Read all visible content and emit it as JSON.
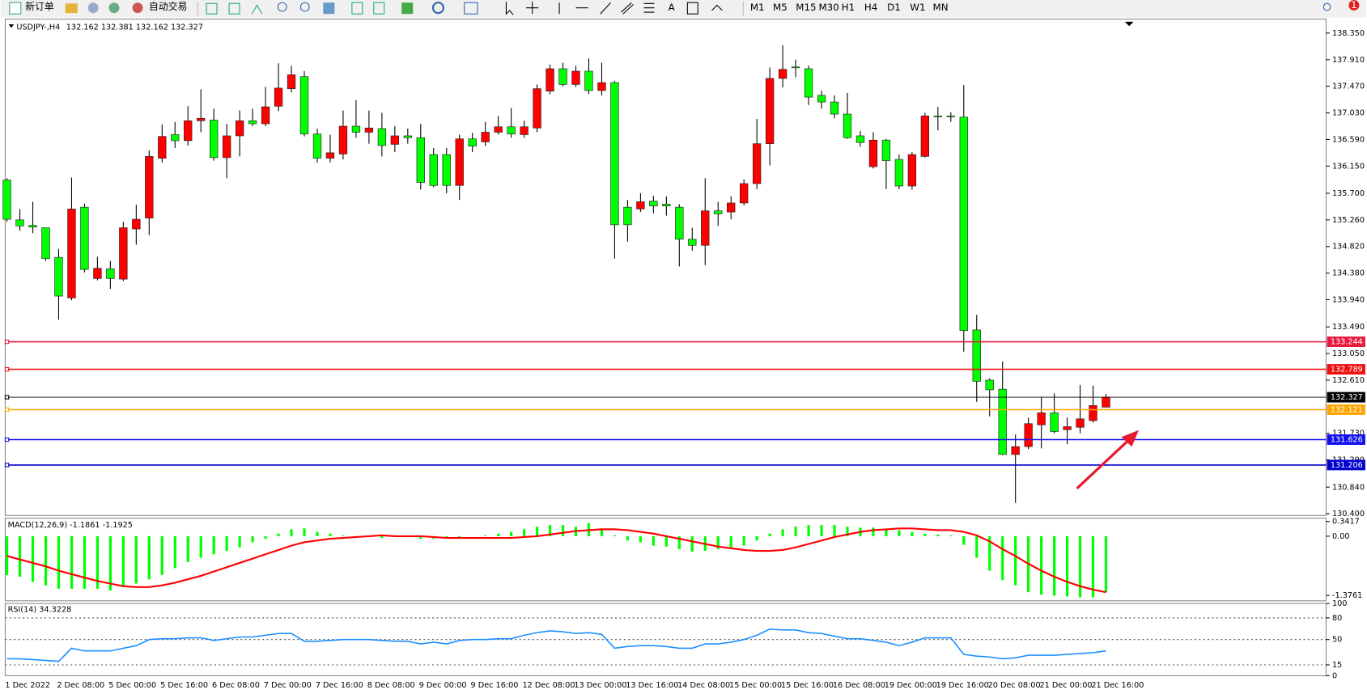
{
  "toolbar": {
    "buttons": [
      "新订单",
      "自动交易"
    ],
    "text_tool": "A",
    "timeframes": [
      "M1",
      "M5",
      "M15",
      "M30",
      "H1",
      "H4",
      "D1",
      "W1",
      "MN"
    ],
    "badge": "1"
  },
  "chart_data": [
    {
      "type": "candlestick",
      "title": "USDJPY-,H4",
      "subtitle": "132.162 132.381 132.162 132.327",
      "categories": [
        "1 Dec 2022",
        null,
        null,
        null,
        "2 Dec 08:00",
        null,
        null,
        null,
        "5 Dec 00:00",
        null,
        null,
        null,
        "5 Dec 16:00",
        null,
        null,
        null,
        "6 Dec 08:00",
        null,
        null,
        null,
        "7 Dec 00:00",
        null,
        null,
        null,
        "7 Dec 16:00",
        null,
        null,
        null,
        "8 Dec 08:00",
        null,
        null,
        null,
        "9 Dec 00:00",
        null,
        null,
        null,
        "9 Dec 16:00",
        null,
        null,
        null,
        "12 Dec 08:00",
        null,
        null,
        null,
        "13 Dec 00:00",
        null,
        null,
        null,
        "13 Dec 16:00",
        null,
        null,
        null,
        "14 Dec 08:00",
        null,
        null,
        null,
        "15 Dec 00:00",
        null,
        null,
        null,
        "15 Dec 16:00",
        null,
        null,
        null,
        "16 Dec 08:00",
        null,
        null,
        null,
        "19 Dec 00:00",
        null,
        null,
        null,
        "19 Dec 16:00",
        null,
        null,
        null,
        "20 Dec 08:00",
        null,
        null,
        null,
        "21 Dec 00:00",
        null,
        null,
        null,
        "21 Dec 16:00",
        null
      ],
      "open": [
        135.92,
        135.26,
        135.17,
        135.13,
        134.64,
        133.97,
        135.47,
        134.29,
        134.45,
        134.28,
        135.11,
        135.29,
        136.28,
        136.67,
        136.57,
        136.9,
        136.91,
        136.29,
        136.65,
        136.9,
        136.85,
        137.14,
        137.43,
        137.63,
        136.68,
        136.28,
        136.35,
        136.81,
        136.71,
        136.77,
        136.51,
        136.65,
        136.62,
        136.34,
        136.34,
        135.83,
        136.6,
        136.55,
        136.71,
        136.8,
        136.67,
        136.78,
        137.39,
        137.76,
        137.5,
        137.72,
        137.4,
        137.53,
        135.47,
        135.44,
        135.57,
        135.52,
        135.47,
        134.94,
        134.84,
        135.41,
        135.39,
        135.54,
        135.86,
        136.52,
        137.6,
        137.79,
        137.76,
        137.32,
        137.21,
        137.01,
        136.65,
        136.14,
        136.58,
        136.26,
        135.82,
        136.31,
        136.98,
        136.98,
        136.96,
        133.44,
        132.61,
        132.46,
        131.38,
        131.51,
        131.87,
        132.07,
        131.79,
        131.83,
        131.94,
        132.162
      ],
      "high": [
        135.95,
        135.44,
        135.56,
        135.13,
        134.78,
        135.96,
        135.53,
        134.65,
        134.58,
        135.23,
        135.51,
        136.41,
        136.84,
        136.88,
        137.14,
        137.42,
        137.1,
        136.85,
        137.07,
        137.1,
        137.46,
        137.85,
        137.81,
        137.72,
        136.77,
        136.67,
        137.07,
        137.24,
        137.07,
        137.03,
        136.81,
        136.77,
        136.85,
        136.45,
        136.45,
        136.67,
        136.7,
        136.88,
        136.98,
        137.11,
        136.9,
        137.5,
        137.83,
        137.86,
        137.81,
        137.93,
        137.86,
        137.56,
        135.59,
        135.7,
        135.66,
        135.65,
        135.52,
        135.13,
        135.95,
        135.56,
        135.65,
        135.93,
        136.93,
        137.78,
        138.15,
        137.91,
        137.81,
        137.4,
        137.32,
        137.36,
        136.73,
        136.71,
        136.6,
        136.34,
        136.38,
        137.03,
        137.13,
        137.04,
        137.49,
        133.69,
        132.64,
        132.92,
        131.71,
        131.99,
        132.32,
        132.39,
        131.99,
        132.53,
        132.52,
        132.381
      ],
      "low": [
        135.23,
        135.08,
        135.04,
        134.58,
        133.61,
        133.93,
        134.39,
        134.26,
        134.12,
        134.25,
        134.85,
        135.01,
        136.21,
        136.45,
        136.49,
        136.71,
        136.24,
        135.95,
        136.31,
        136.81,
        136.81,
        137.06,
        137.37,
        136.64,
        136.21,
        136.21,
        136.26,
        136.62,
        136.52,
        136.31,
        136.38,
        136.52,
        135.76,
        135.8,
        135.7,
        135.59,
        136.38,
        136.48,
        136.67,
        136.62,
        136.62,
        136.71,
        137.34,
        137.47,
        137.46,
        137.34,
        137.32,
        134.62,
        134.9,
        135.39,
        135.37,
        135.33,
        134.49,
        134.75,
        134.51,
        135.16,
        135.27,
        135.5,
        135.77,
        136.16,
        137.45,
        137.62,
        137.16,
        137.1,
        136.94,
        136.6,
        136.47,
        136.11,
        135.77,
        135.77,
        135.76,
        136.29,
        136.74,
        136.88,
        133.08,
        132.25,
        132.01,
        131.37,
        130.58,
        131.47,
        131.48,
        131.73,
        131.55,
        131.73,
        131.91,
        132.162
      ],
      "close": [
        135.27,
        135.16,
        135.14,
        134.62,
        134.0,
        135.44,
        134.44,
        134.46,
        134.29,
        135.13,
        135.27,
        136.31,
        136.64,
        136.57,
        136.9,
        136.94,
        136.29,
        136.65,
        136.9,
        136.85,
        137.13,
        137.44,
        137.66,
        136.68,
        136.28,
        136.37,
        136.81,
        136.71,
        136.78,
        136.49,
        136.65,
        136.62,
        135.88,
        135.83,
        135.83,
        136.6,
        136.48,
        136.71,
        136.8,
        136.68,
        136.8,
        137.43,
        137.76,
        137.5,
        137.72,
        137.4,
        137.53,
        135.18,
        135.18,
        135.56,
        135.49,
        135.49,
        134.94,
        134.84,
        135.41,
        135.36,
        135.54,
        135.86,
        136.52,
        137.6,
        137.75,
        137.78,
        137.29,
        137.21,
        137.01,
        136.62,
        136.54,
        136.58,
        136.24,
        135.82,
        136.34,
        136.98,
        136.97,
        136.97,
        133.43,
        132.59,
        132.45,
        131.38,
        131.51,
        131.89,
        132.07,
        131.76,
        131.84,
        131.97,
        132.19,
        132.327
      ],
      "up_color": "#ff0000",
      "down_color": "#00ff00",
      "ylim": [
        130.371,
        138.58
      ],
      "yticks": [
        {
          "value": 138.35,
          "label": "138.350"
        },
        {
          "value": 137.91,
          "label": "137.910"
        },
        {
          "value": 137.47,
          "label": "137.470"
        },
        {
          "value": 137.03,
          "label": "137.030"
        },
        {
          "value": 136.59,
          "label": "136.590"
        },
        {
          "value": 136.15,
          "label": "136.150"
        },
        {
          "value": 135.7,
          "label": "135.700"
        },
        {
          "value": 135.26,
          "label": "135.260"
        },
        {
          "value": 134.82,
          "label": "134.820"
        },
        {
          "value": 134.38,
          "label": "134.380"
        },
        {
          "value": 133.94,
          "label": "133.940"
        },
        {
          "value": 133.49,
          "label": "133.490"
        },
        {
          "value": 133.05,
          "label": "133.050"
        },
        {
          "value": 132.61,
          "label": "132.610"
        },
        {
          "value": 131.73,
          "label": "131.730"
        },
        {
          "value": 131.29,
          "label": "131.290"
        },
        {
          "value": 130.84,
          "label": "130.840"
        },
        {
          "value": 130.4,
          "label": "130.400"
        }
      ],
      "levels": [
        {
          "value": 133.244,
          "color": "#e8193c"
        },
        {
          "value": 132.789,
          "color": "#f01010"
        },
        {
          "value": 132.121,
          "color": "#ffa500"
        },
        {
          "value": 131.626,
          "color": "#1010ee"
        },
        {
          "value": 131.206,
          "color": "#0000cd"
        }
      ],
      "last_price": {
        "value": 132.327,
        "color": "#000000"
      }
    },
    {
      "type": "macd",
      "title": "MACD(12,26,9) -1.1861 -1.1925",
      "histogram": [
        -0.9,
        -0.94,
        -1.06,
        -1.14,
        -1.22,
        -1.22,
        -1.22,
        -1.22,
        -1.26,
        -1.18,
        -1.1,
        -1,
        -0.9,
        -0.74,
        -0.6,
        -0.5,
        -0.42,
        -0.34,
        -0.26,
        -0.14,
        -0.06,
        0.06,
        0.16,
        0.18,
        0.1,
        0.06,
        0.02,
        0,
        -0.02,
        -0.04,
        -0.02,
        -0.02,
        -0.06,
        -0.06,
        -0.04,
        -0.02,
        0,
        0.02,
        0.06,
        0.1,
        0.16,
        0.22,
        0.26,
        0.26,
        0.22,
        0.3,
        0.18,
        0.02,
        -0.1,
        -0.14,
        -0.22,
        -0.24,
        -0.3,
        -0.36,
        -0.34,
        -0.3,
        -0.26,
        -0.22,
        -0.1,
        0.06,
        0.16,
        0.22,
        0.26,
        0.26,
        0.26,
        0.22,
        0.2,
        0.2,
        0.16,
        0.14,
        0.1,
        0.06,
        0.04,
        0.02,
        -0.2,
        -0.5,
        -0.8,
        -1.02,
        -1.14,
        -1.3,
        -1.36,
        -1.38,
        -1.4,
        -1.42,
        -1.42,
        -1.3
      ],
      "signal": [
        -0.46,
        -0.54,
        -0.62,
        -0.7,
        -0.8,
        -0.88,
        -0.96,
        -1.04,
        -1.1,
        -1.16,
        -1.18,
        -1.18,
        -1.14,
        -1.08,
        -1,
        -0.92,
        -0.82,
        -0.72,
        -0.62,
        -0.52,
        -0.42,
        -0.32,
        -0.22,
        -0.14,
        -0.1,
        -0.06,
        -0.04,
        -0.02,
        0,
        0.02,
        0,
        0,
        0,
        -0.02,
        -0.04,
        -0.04,
        -0.04,
        -0.04,
        -0.04,
        -0.04,
        -0.02,
        0,
        0.04,
        0.08,
        0.12,
        0.14,
        0.16,
        0.16,
        0.14,
        0.1,
        0.06,
        0,
        -0.06,
        -0.12,
        -0.18,
        -0.24,
        -0.28,
        -0.32,
        -0.34,
        -0.34,
        -0.32,
        -0.26,
        -0.18,
        -0.1,
        -0.02,
        0.04,
        0.1,
        0.14,
        0.16,
        0.18,
        0.18,
        0.16,
        0.14,
        0.14,
        0.1,
        0.02,
        -0.12,
        -0.3,
        -0.46,
        -0.64,
        -0.8,
        -0.94,
        -1.06,
        -1.16,
        -1.24,
        -1.3
      ],
      "histogram_color": "#00ff00",
      "signal_color": "#ff0000",
      "ylim": [
        -1.5,
        0.42
      ],
      "yticks": [
        0.3417,
        {
          "value": 0,
          "label": "0.00"
        },
        -1.3761
      ]
    },
    {
      "type": "line",
      "title": "RSI(14) 34.3228",
      "values": [
        23.5,
        23.5,
        22.3,
        21.1,
        19.9,
        38.0,
        34.3,
        34.3,
        34.3,
        38.0,
        41.6,
        50.0,
        51.2,
        51.2,
        52.4,
        52.4,
        48.8,
        51.2,
        53.6,
        53.6,
        56.0,
        58.4,
        58.4,
        47.6,
        47.6,
        48.8,
        50.0,
        50.0,
        50.0,
        48.8,
        47.6,
        47.6,
        44.0,
        46.4,
        44.0,
        48.8,
        50.0,
        50.0,
        51.2,
        51.2,
        56.0,
        59.6,
        62.0,
        60.8,
        58.4,
        59.6,
        57.2,
        38.0,
        40.4,
        41.6,
        41.6,
        40.4,
        38.0,
        38.0,
        44.0,
        44.0,
        46.4,
        50.0,
        56.0,
        64.5,
        63.3,
        63.3,
        59.6,
        58.4,
        54.8,
        51.2,
        51.2,
        48.8,
        46.4,
        41.6,
        46.4,
        52.4,
        52.4,
        52.4,
        29.5,
        27.1,
        25.9,
        23.5,
        24.7,
        28.3,
        28.3,
        28.3,
        29.5,
        30.7,
        31.9,
        34.32
      ],
      "color": "#1e90ff",
      "ylim": [
        0,
        100
      ],
      "yticks": [
        100,
        80,
        50,
        15,
        0
      ],
      "grid": true
    }
  ]
}
